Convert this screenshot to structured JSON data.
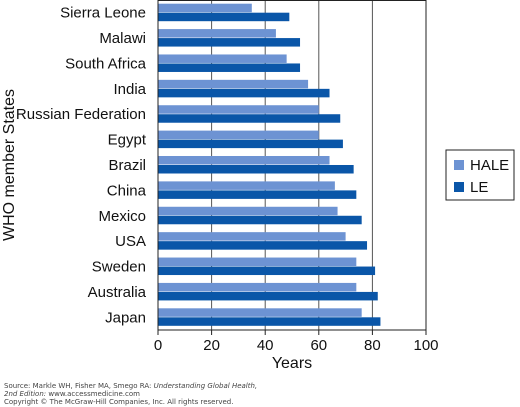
{
  "chart_data": {
    "type": "bar",
    "orientation": "horizontal",
    "categories": [
      "Sierra Leone",
      "Malawi",
      "South Africa",
      "India",
      "Russian Federation",
      "Egypt",
      "Brazil",
      "China",
      "Mexico",
      "USA",
      "Sweden",
      "Australia",
      "Japan"
    ],
    "series": [
      {
        "name": "HALE",
        "color": "#6d93d3",
        "values": [
          35,
          44,
          48,
          56,
          60,
          60,
          64,
          66,
          67,
          70,
          74,
          74,
          76
        ]
      },
      {
        "name": "LE",
        "color": "#0a56a8",
        "values": [
          49,
          53,
          53,
          64,
          68,
          69,
          73,
          74,
          76,
          78,
          81,
          82,
          83
        ]
      }
    ],
    "xlabel": "Years",
    "ylabel": "WHO member States",
    "xlim": [
      0,
      100
    ],
    "xticks": [
      0,
      20,
      40,
      60,
      80,
      100
    ],
    "grid": "vertical",
    "legend_position": "right"
  },
  "footer": {
    "source_prefix": "Source: Markle WH, Fisher MA, Smego RA: ",
    "source_title": "Understanding Global Health,",
    "edition": "2nd Edition:",
    "edition_url": " www.accessmedicine.com",
    "copyright": "Copyright © The McGraw-Hill Companies, Inc. All rights reserved."
  }
}
